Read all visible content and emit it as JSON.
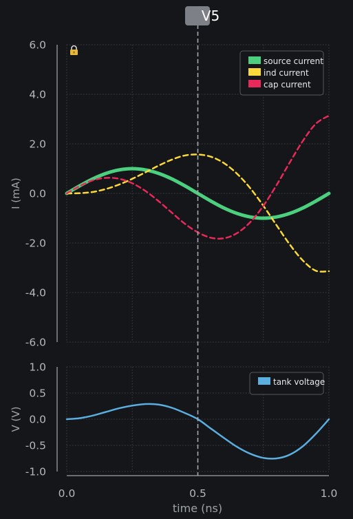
{
  "chart_data": [
    {
      "type": "line",
      "ylabel": "I (mA)",
      "xlim": [
        0,
        1
      ],
      "ylim": [
        -6,
        6
      ],
      "yticks": [
        6.0,
        4.0,
        2.0,
        0.0,
        -2.0,
        -4.0,
        -6.0
      ],
      "ytick_labels": [
        "6.0",
        "4.0",
        "2.0",
        "0.0",
        "-2.0",
        "-4.0",
        "-6.0"
      ],
      "grid": true,
      "legend": "top-right",
      "lock_icon": "lock-icon",
      "series": [
        {
          "name": "source current",
          "color": "#4ccf7f",
          "style": "solid",
          "x": [
            0,
            0.05,
            0.1,
            0.15,
            0.2,
            0.25,
            0.3,
            0.35,
            0.4,
            0.45,
            0.5,
            0.55,
            0.6,
            0.65,
            0.7,
            0.75,
            0.8,
            0.85,
            0.9,
            0.95,
            1.0
          ],
          "y": [
            0,
            0.31,
            0.59,
            0.81,
            0.95,
            1.0,
            0.95,
            0.81,
            0.59,
            0.31,
            0,
            -0.31,
            -0.59,
            -0.81,
            -0.95,
            -1.0,
            -0.95,
            -0.81,
            -0.59,
            -0.31,
            0
          ]
        },
        {
          "name": "ind current",
          "color": "#fcd93a",
          "style": "dashed",
          "x": [
            0,
            0.05,
            0.1,
            0.15,
            0.2,
            0.25,
            0.3,
            0.35,
            0.4,
            0.45,
            0.5,
            0.55,
            0.6,
            0.65,
            0.7,
            0.75,
            0.8,
            0.85,
            0.9,
            0.95,
            1.0
          ],
          "y": [
            0,
            0.01,
            0.06,
            0.18,
            0.36,
            0.59,
            0.85,
            1.12,
            1.36,
            1.53,
            1.57,
            1.48,
            1.22,
            0.79,
            0.21,
            -0.5,
            -1.28,
            -2.05,
            -2.7,
            -3.12,
            -3.14
          ]
        },
        {
          "name": "cap current",
          "color": "#e8295a",
          "style": "dashed",
          "x": [
            0,
            0.05,
            0.1,
            0.15,
            0.2,
            0.25,
            0.3,
            0.35,
            0.4,
            0.45,
            0.5,
            0.55,
            0.6,
            0.65,
            0.7,
            0.75,
            0.8,
            0.85,
            0.9,
            0.95,
            1.0
          ],
          "y": [
            0,
            0.3,
            0.53,
            0.63,
            0.59,
            0.41,
            0.1,
            -0.31,
            -0.77,
            -1.22,
            -1.57,
            -1.79,
            -1.81,
            -1.6,
            -1.16,
            -0.5,
            0.33,
            1.24,
            2.11,
            2.81,
            3.14
          ]
        }
      ]
    },
    {
      "type": "line",
      "xlabel": "time (ns)",
      "ylabel": "V (V)",
      "xlim": [
        0,
        1
      ],
      "ylim": [
        -1,
        1
      ],
      "xticks": [
        0.0,
        0.5,
        1.0
      ],
      "xtick_labels": [
        "0.0",
        "0.5",
        "1.0"
      ],
      "yticks": [
        1.0,
        0.5,
        0.0,
        -0.5,
        -1.0
      ],
      "ytick_labels": [
        "1.0",
        "0.5",
        "0.0",
        "-0.5",
        "-1.0"
      ],
      "grid": true,
      "legend": "top-right",
      "series": [
        {
          "name": "tank voltage",
          "color": "#5aaee0",
          "style": "solid",
          "x": [
            0,
            0.05,
            0.1,
            0.15,
            0.2,
            0.25,
            0.3,
            0.35,
            0.4,
            0.45,
            0.5,
            0.55,
            0.6,
            0.65,
            0.7,
            0.75,
            0.8,
            0.85,
            0.9,
            0.95,
            1.0
          ],
          "y": [
            0,
            0.02,
            0.07,
            0.14,
            0.21,
            0.26,
            0.29,
            0.28,
            0.22,
            0.12,
            0,
            -0.18,
            -0.36,
            -0.53,
            -0.66,
            -0.74,
            -0.75,
            -0.68,
            -0.52,
            -0.28,
            0
          ]
        }
      ]
    }
  ],
  "cursor": {
    "label": "V5",
    "x": 0.5
  }
}
